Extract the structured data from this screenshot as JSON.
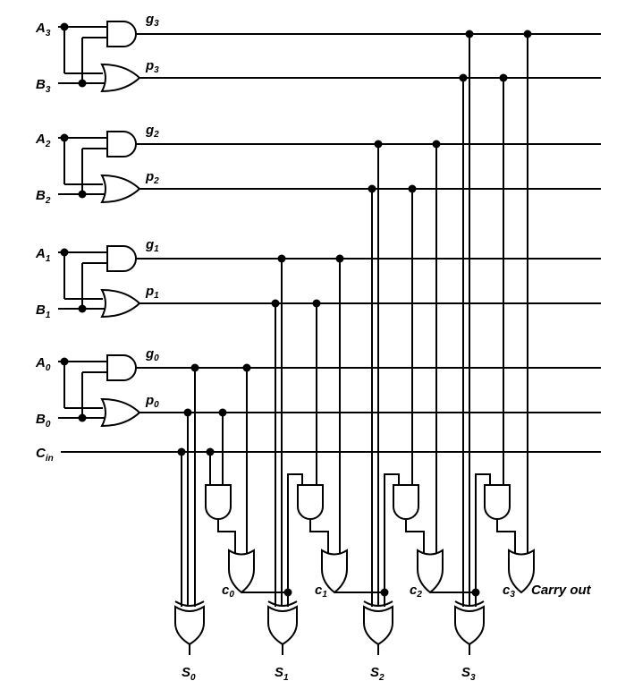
{
  "diagram": {
    "inputs": [
      {
        "base": "A",
        "sub": "3"
      },
      {
        "base": "B",
        "sub": "3"
      },
      {
        "base": "A",
        "sub": "2"
      },
      {
        "base": "B",
        "sub": "2"
      },
      {
        "base": "A",
        "sub": "1"
      },
      {
        "base": "B",
        "sub": "1"
      },
      {
        "base": "A",
        "sub": "0"
      },
      {
        "base": "B",
        "sub": "0"
      },
      {
        "base": "C",
        "sub": "in"
      }
    ],
    "signals": [
      {
        "base": "g",
        "sub": "3"
      },
      {
        "base": "p",
        "sub": "3"
      },
      {
        "base": "g",
        "sub": "2"
      },
      {
        "base": "p",
        "sub": "2"
      },
      {
        "base": "g",
        "sub": "1"
      },
      {
        "base": "p",
        "sub": "1"
      },
      {
        "base": "g",
        "sub": "0"
      },
      {
        "base": "p",
        "sub": "0"
      }
    ],
    "carries": [
      {
        "base": "c",
        "sub": "0"
      },
      {
        "base": "c",
        "sub": "1"
      },
      {
        "base": "c",
        "sub": "2"
      },
      {
        "base": "c",
        "sub": "3"
      }
    ],
    "sums": [
      {
        "base": "S",
        "sub": "0"
      },
      {
        "base": "S",
        "sub": "1"
      },
      {
        "base": "S",
        "sub": "2"
      },
      {
        "base": "S",
        "sub": "3"
      }
    ],
    "carry_out_label": "Carry out"
  }
}
